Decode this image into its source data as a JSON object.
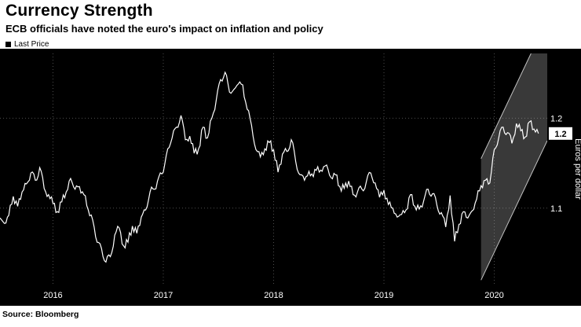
{
  "header": {
    "title": "Currency Strength",
    "subtitle": "ECB officials have noted the euro's impact on inflation and policy"
  },
  "legend": {
    "label": "Last Price",
    "marker_color": "#000000"
  },
  "source": "Source: Bloomberg",
  "colors": {
    "chart_background": "#000000",
    "line": "#ffffff",
    "grid": "#4d4d4d",
    "badge_background": "#ffffff",
    "badge_text": "#000000"
  },
  "chart_data": {
    "type": "line",
    "title": "Currency Strength",
    "subtitle": "ECB officials have noted the euro's impact on inflation and policy",
    "xlabel": "",
    "ylabel": "Euros per dollar",
    "xlim": [
      2016.02,
      2020.98
    ],
    "ylim": [
      1.015,
      1.272
    ],
    "grid": "dotted",
    "legend_position": "top-left",
    "background": "#000000",
    "last_price_label": "1.2",
    "x_ticks": [
      {
        "label": "2016",
        "pos": 2016.5
      },
      {
        "label": "2017",
        "pos": 2017.5
      },
      {
        "label": "2018",
        "pos": 2018.5
      },
      {
        "label": "2019",
        "pos": 2019.5
      },
      {
        "label": "2020",
        "pos": 2020.5
      }
    ],
    "y_ticks": [
      {
        "label": "1.1",
        "value": 1.1
      },
      {
        "label": "1.2",
        "value": 1.2
      }
    ],
    "series": [
      {
        "name": "Last Price",
        "color": "#ffffff",
        "x_start": 2016.02,
        "x_end": 2020.9,
        "values": [
          1.089,
          1.083,
          1.092,
          1.113,
          1.102,
          1.118,
          1.127,
          1.139,
          1.131,
          1.145,
          1.122,
          1.115,
          1.105,
          1.096,
          1.107,
          1.118,
          1.133,
          1.121,
          1.124,
          1.115,
          1.098,
          1.087,
          1.062,
          1.055,
          1.04,
          1.046,
          1.07,
          1.078,
          1.058,
          1.062,
          1.08,
          1.072,
          1.09,
          1.098,
          1.118,
          1.121,
          1.135,
          1.14,
          1.166,
          1.178,
          1.19,
          1.203,
          1.176,
          1.18,
          1.161,
          1.166,
          1.19,
          1.178,
          1.2,
          1.22,
          1.243,
          1.251,
          1.229,
          1.232,
          1.238,
          1.237,
          1.21,
          1.192,
          1.165,
          1.157,
          1.166,
          1.173,
          1.165,
          1.14,
          1.16,
          1.163,
          1.176,
          1.152,
          1.137,
          1.131,
          1.141,
          1.135,
          1.146,
          1.141,
          1.148,
          1.134,
          1.137,
          1.124,
          1.122,
          1.13,
          1.115,
          1.118,
          1.121,
          1.129,
          1.139,
          1.128,
          1.112,
          1.12,
          1.104,
          1.1,
          1.09,
          1.093,
          1.098,
          1.115,
          1.102,
          1.099,
          1.108,
          1.121,
          1.116,
          1.103,
          1.095,
          1.079,
          1.114,
          1.063,
          1.082,
          1.096,
          1.089,
          1.097,
          1.11,
          1.125,
          1.131,
          1.128,
          1.165,
          1.178,
          1.19,
          1.184,
          1.172,
          1.194,
          1.186,
          1.179,
          1.196,
          1.188,
          1.183
        ]
      }
    ],
    "annotation_channel": {
      "x_start": 2020.38,
      "x_end": 2020.98,
      "lower_start": 1.02,
      "lower_end": 1.175,
      "upper_start": 1.155,
      "upper_end": 1.31,
      "fill": "rgba(190,190,190,0.30)",
      "edge_color": "rgba(225,225,225,0.85)"
    }
  }
}
